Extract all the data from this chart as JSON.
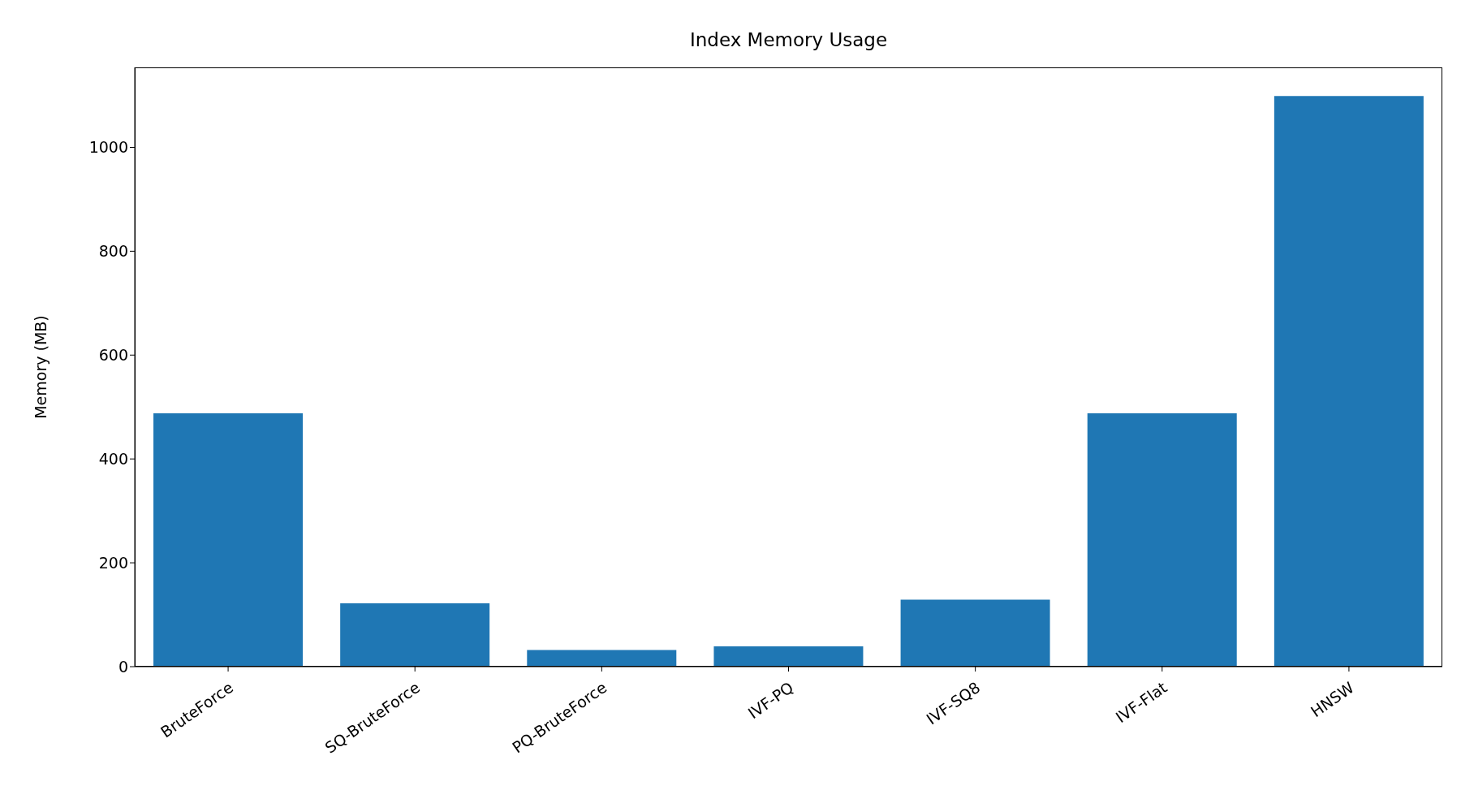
{
  "chart_data": {
    "type": "bar",
    "title": "Index Memory Usage",
    "ylabel": "Memory (MB)",
    "categories": [
      "BruteForce",
      "SQ-BruteForce",
      "PQ-BruteForce",
      "IVF-PQ",
      "IVF-SQ8",
      "IVF-Flat",
      "HNSW"
    ],
    "values": [
      488,
      122,
      32,
      39,
      129,
      488,
      1099
    ],
    "color": "#1f77b4",
    "ylim": [
      0,
      1154
    ],
    "yticks": [
      0,
      200,
      400,
      600,
      800,
      1000
    ],
    "grid": false
  }
}
